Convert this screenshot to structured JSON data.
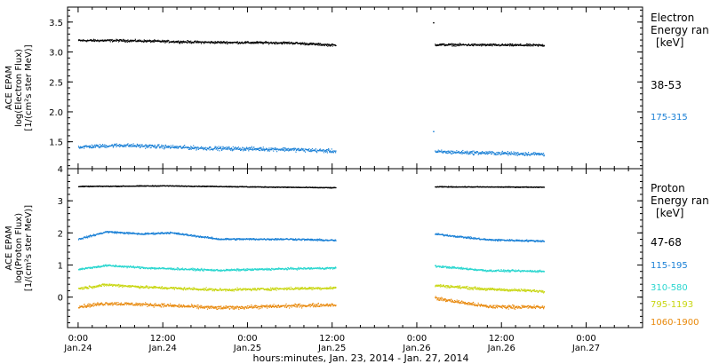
{
  "chart_data": [
    {
      "type": "scatter",
      "panel": "electron",
      "ylabel": [
        "ACE EPAM",
        "log(Electron Flux)",
        "[1/(cm²s ster MeV)]"
      ],
      "ylim": [
        1.05,
        3.75
      ],
      "yticks": [
        1.5,
        2.0,
        2.5,
        3.0,
        3.5
      ],
      "ytick_labels": [
        "1.5",
        "2.0",
        "2.5",
        "3.0",
        "3.5"
      ],
      "legend_title": [
        "Electron",
        "Energy ran",
        "[keV]"
      ],
      "grid": false,
      "series": [
        {
          "name": "38-53",
          "color": "#000000",
          "level": [
            [
              0,
              3.2
            ],
            [
              6,
              3.2
            ],
            [
              18,
              3.17
            ],
            [
              30,
              3.16
            ],
            [
              36.5,
              3.12
            ]
          ],
          "late_level": [
            [
              50.5,
              3.13
            ],
            [
              66,
              3.12
            ]
          ],
          "spread": 0.028,
          "spike": [
            50.3,
            3.5
          ]
        },
        {
          "name": "175-315",
          "color": "#1a80d6",
          "level": [
            [
              0,
              1.42
            ],
            [
              6,
              1.45
            ],
            [
              18,
              1.4
            ],
            [
              30,
              1.38
            ],
            [
              36.5,
              1.35
            ]
          ],
          "late_level": [
            [
              50.5,
              1.34
            ],
            [
              66,
              1.3
            ]
          ],
          "spread": 0.045,
          "spike": [
            50.3,
            1.68
          ]
        }
      ]
    },
    {
      "type": "scatter",
      "panel": "proton",
      "ylabel": [
        "ACE EPAM",
        "log(Proton Flux)",
        "[1/(cm²s ster MeV)]"
      ],
      "ylim": [
        -0.95,
        4.0
      ],
      "yticks": [
        0,
        1,
        2,
        3,
        4
      ],
      "ytick_labels": [
        "0",
        "1",
        "2",
        "3",
        "4"
      ],
      "legend_title": [
        "Proton",
        "Energy ran",
        "[keV]"
      ],
      "grid": false,
      "series": [
        {
          "name": "47-68",
          "color": "#000000",
          "level": [
            [
              0,
              3.46
            ],
            [
              12,
              3.48
            ],
            [
              24,
              3.45
            ],
            [
              36.5,
              3.42
            ]
          ],
          "late_level": [
            [
              50.5,
              3.45
            ],
            [
              66,
              3.44
            ]
          ],
          "spread": 0.018
        },
        {
          "name": "115-195",
          "color": "#1a80d6",
          "level": [
            [
              0,
              1.82
            ],
            [
              4,
              2.05
            ],
            [
              9,
              1.98
            ],
            [
              13,
              2.02
            ],
            [
              20,
              1.82
            ],
            [
              30,
              1.82
            ],
            [
              36.5,
              1.78
            ]
          ],
          "late_level": [
            [
              50.5,
              1.98
            ],
            [
              58,
              1.8
            ],
            [
              66,
              1.76
            ]
          ],
          "spread": 0.04
        },
        {
          "name": "310-580",
          "color": "#29d6cf",
          "level": [
            [
              0,
              0.88
            ],
            [
              4,
              1.0
            ],
            [
              10,
              0.92
            ],
            [
              20,
              0.85
            ],
            [
              30,
              0.9
            ],
            [
              36.5,
              0.92
            ]
          ],
          "late_level": [
            [
              50.5,
              0.98
            ],
            [
              58,
              0.84
            ],
            [
              66,
              0.82
            ]
          ],
          "spread": 0.045
        },
        {
          "name": "795-1193",
          "color": "#c8d610",
          "level": [
            [
              0,
              0.28
            ],
            [
              4,
              0.4
            ],
            [
              10,
              0.32
            ],
            [
              20,
              0.24
            ],
            [
              30,
              0.28
            ],
            [
              36.5,
              0.3
            ]
          ],
          "late_level": [
            [
              50.5,
              0.38
            ],
            [
              58,
              0.26
            ],
            [
              66,
              0.2
            ]
          ],
          "spread": 0.06
        },
        {
          "name": "1060-1900",
          "color": "#e8880a",
          "level": [
            [
              0,
              -0.28
            ],
            [
              4,
              -0.18
            ],
            [
              10,
              -0.22
            ],
            [
              20,
              -0.32
            ],
            [
              30,
              -0.26
            ],
            [
              36.5,
              -0.22
            ]
          ],
          "late_level": [
            [
              50.5,
              -0.02
            ],
            [
              58,
              -0.28
            ],
            [
              66,
              -0.3
            ]
          ],
          "spread": 0.08
        }
      ]
    }
  ],
  "time_axis": {
    "xlim_hours": [
      -1.5,
      80
    ],
    "data_gaps": [
      [
        37,
        50.2
      ]
    ],
    "tick_hours": [
      0,
      12,
      24,
      36,
      48,
      60,
      72
    ],
    "tick_time_labels": [
      "0:00",
      "12:00",
      "0:00",
      "12:00",
      "0:00",
      "12:00",
      "0:00"
    ],
    "tick_date_labels": [
      "Jan.24",
      "Jan.24",
      "Jan.25",
      "Jan.25",
      "Jan.26",
      "Jan.26",
      "Jan.27"
    ],
    "minor_tick_step_hours": 2,
    "xlabel": "hours:minutes, Jan. 23, 2014 - Jan. 27, 2014"
  }
}
